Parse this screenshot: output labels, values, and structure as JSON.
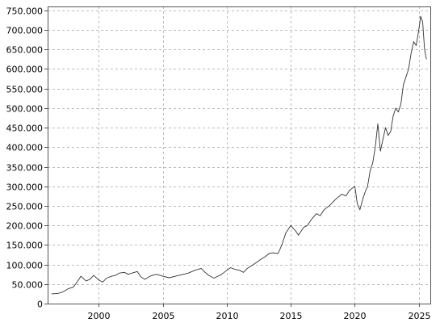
{
  "chart_data": {
    "type": "line",
    "title": "",
    "xlabel": "",
    "ylabel": "",
    "xlim": [
      1996.0,
      2025.9
    ],
    "ylim": [
      0,
      760000
    ],
    "grid": true,
    "x_ticks": [
      {
        "value": 2000,
        "label": "2000"
      },
      {
        "value": 2005,
        "label": "2005"
      },
      {
        "value": 2010,
        "label": "2010"
      },
      {
        "value": 2015,
        "label": "2015"
      },
      {
        "value": 2020,
        "label": "2020"
      },
      {
        "value": 2025,
        "label": "2025"
      }
    ],
    "y_ticks": [
      {
        "value": 0,
        "label": "0"
      },
      {
        "value": 50000,
        "label": "50.000"
      },
      {
        "value": 100000,
        "label": "100.000"
      },
      {
        "value": 150000,
        "label": "150.000"
      },
      {
        "value": 200000,
        "label": "200.000"
      },
      {
        "value": 250000,
        "label": "250.000"
      },
      {
        "value": 300000,
        "label": "300.000"
      },
      {
        "value": 350000,
        "label": "350.000"
      },
      {
        "value": 400000,
        "label": "400.000"
      },
      {
        "value": 450000,
        "label": "450.000"
      },
      {
        "value": 500000,
        "label": "500.000"
      },
      {
        "value": 550000,
        "label": "550.000"
      },
      {
        "value": 600000,
        "label": "600.000"
      },
      {
        "value": 650000,
        "label": "650.000"
      },
      {
        "value": 700000,
        "label": "700.000"
      },
      {
        "value": 750000,
        "label": "750.000"
      }
    ],
    "series": [
      {
        "color": "#333333",
        "x": [
          1996.3,
          1996.8,
          1997.2,
          1997.6,
          1998.0,
          1998.3,
          1998.6,
          1999.0,
          1999.3,
          1999.6,
          2000.0,
          2000.3,
          2000.6,
          2001.0,
          2001.3,
          2001.6,
          2002.0,
          2002.3,
          2002.6,
          2003.0,
          2003.3,
          2003.6,
          2004.0,
          2004.5,
          2005.0,
          2005.5,
          2006.0,
          2006.5,
          2007.0,
          2007.5,
          2008.0,
          2008.3,
          2008.6,
          2009.0,
          2009.3,
          2009.6,
          2010.0,
          2010.3,
          2010.6,
          2011.0,
          2011.3,
          2011.6,
          2012.0,
          2012.3,
          2012.6,
          2013.0,
          2013.3,
          2013.6,
          2014.0,
          2014.3,
          2014.6,
          2015.0,
          2015.2,
          2015.4,
          2015.6,
          2015.8,
          2016.0,
          2016.3,
          2016.6,
          2017.0,
          2017.3,
          2017.6,
          2018.0,
          2018.3,
          2018.6,
          2019.0,
          2019.3,
          2019.6,
          2020.0,
          2020.2,
          2020.4,
          2020.6,
          2020.8,
          2021.0,
          2021.2,
          2021.4,
          2021.6,
          2021.8,
          2022.0,
          2022.2,
          2022.4,
          2022.6,
          2022.8,
          2023.0,
          2023.2,
          2023.4,
          2023.6,
          2023.8,
          2024.0,
          2024.2,
          2024.4,
          2024.6,
          2024.8,
          2025.0,
          2025.15,
          2025.3,
          2025.45,
          2025.6
        ],
        "y": [
          25000,
          26000,
          30000,
          38000,
          42000,
          55000,
          70000,
          58000,
          62000,
          72000,
          60000,
          55000,
          65000,
          70000,
          72000,
          78000,
          80000,
          75000,
          78000,
          82000,
          68000,
          62000,
          70000,
          75000,
          70000,
          66000,
          70000,
          74000,
          78000,
          85000,
          90000,
          80000,
          72000,
          65000,
          70000,
          75000,
          85000,
          92000,
          88000,
          85000,
          80000,
          90000,
          98000,
          105000,
          112000,
          120000,
          128000,
          130000,
          128000,
          150000,
          180000,
          200000,
          192000,
          185000,
          175000,
          185000,
          195000,
          200000,
          215000,
          230000,
          225000,
          240000,
          250000,
          260000,
          270000,
          280000,
          275000,
          290000,
          300000,
          255000,
          240000,
          265000,
          285000,
          300000,
          340000,
          360000,
          400000,
          460000,
          390000,
          420000,
          450000,
          430000,
          440000,
          480000,
          500000,
          490000,
          510000,
          560000,
          580000,
          600000,
          640000,
          670000,
          660000,
          700000,
          735000,
          720000,
          650000,
          625000
        ]
      }
    ]
  }
}
